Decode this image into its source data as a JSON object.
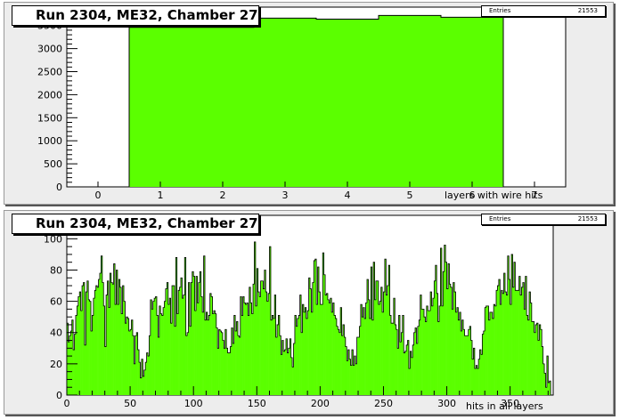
{
  "pads": [
    {
      "title": "Run 2304, ME32, Chamber 27",
      "stats": {
        "label": "Entries",
        "value": "21553"
      },
      "xlabel": "layers with wire hits"
    },
    {
      "title": "Run 2304, ME32, Chamber 27",
      "stats": {
        "label": "Entries",
        "value": "21553"
      },
      "xlabel": "hits in all layers"
    }
  ],
  "colors": {
    "fill": "#5bff00",
    "pad": "#ededed",
    "frame": "#ffffff"
  },
  "chart_data": [
    {
      "type": "bar",
      "title": "Run 2304, ME32, Chamber 27",
      "xlabel": "layers with wire hits",
      "ylabel": "",
      "xlim": [
        -0.5,
        7.5
      ],
      "ylim": [
        0,
        3900
      ],
      "x": [
        1,
        2,
        3,
        4,
        5,
        6
      ],
      "values": [
        3460,
        3460,
        3660,
        3640,
        3720,
        3680
      ],
      "xticks": [
        0,
        1,
        2,
        3,
        4,
        5,
        6,
        7
      ],
      "yticks": [
        0,
        500,
        1000,
        1500,
        2000,
        2500,
        3000,
        3500
      ],
      "entries": 21553
    },
    {
      "type": "bar",
      "title": "Run 2304, ME32, Chamber 27",
      "xlabel": "hits in all layers",
      "ylabel": "",
      "xlim": [
        0,
        384
      ],
      "ylim": [
        0,
        115
      ],
      "xticks": [
        0,
        50,
        100,
        150,
        200,
        250,
        300,
        350
      ],
      "yticks": [
        0,
        20,
        40,
        60,
        80,
        100
      ],
      "entries": 21553,
      "values": [
        46,
        34,
        38,
        41,
        48,
        29,
        39,
        51,
        57,
        63,
        66,
        54,
        70,
        72,
        32,
        66,
        73,
        61,
        60,
        41,
        51,
        62,
        67,
        70,
        69,
        74,
        78,
        89,
        72,
        57,
        31,
        64,
        73,
        56,
        78,
        72,
        71,
        84,
        58,
        80,
        58,
        74,
        69,
        52,
        70,
        60,
        46,
        50,
        49,
        41,
        42,
        48,
        38,
        20,
        38,
        40,
        29,
        21,
        11,
        23,
        12,
        16,
        21,
        27,
        25,
        38,
        61,
        55,
        60,
        62,
        63,
        51,
        37,
        57,
        52,
        51,
        56,
        60,
        68,
        72,
        58,
        62,
        46,
        70,
        70,
        44,
        88,
        52,
        67,
        69,
        75,
        62,
        64,
        88,
        38,
        40,
        72,
        44,
        72,
        79,
        76,
        54,
        76,
        59,
        72,
        79,
        63,
        53,
        89,
        48,
        53,
        48,
        51,
        65,
        63,
        52,
        54,
        52,
        43,
        30,
        42,
        41,
        40,
        35,
        30,
        42,
        30,
        27,
        27,
        31,
        43,
        33,
        51,
        41,
        47,
        38,
        37,
        63,
        51,
        63,
        59,
        58,
        59,
        51,
        69,
        59,
        52,
        71,
        98,
        57,
        81,
        66,
        63,
        73,
        73,
        68,
        80,
        66,
        60,
        65,
        95,
        48,
        51,
        49,
        64,
        37,
        45,
        51,
        38,
        26,
        35,
        28,
        29,
        36,
        27,
        30,
        36,
        24,
        18,
        33,
        51,
        44,
        49,
        51,
        64,
        40,
        58,
        53,
        56,
        49,
        54,
        75,
        68,
        53,
        72,
        86,
        87,
        58,
        82,
        66,
        58,
        58,
        91,
        77,
        64,
        65,
        61,
        59,
        62,
        53,
        59,
        51,
        49,
        44,
        42,
        40,
        56,
        38,
        45,
        37,
        31,
        22,
        29,
        23,
        19,
        29,
        19,
        25,
        20,
        37,
        37,
        44,
        58,
        50,
        56,
        49,
        59,
        74,
        61,
        49,
        82,
        48,
        85,
        61,
        73,
        73,
        58,
        60,
        69,
        53,
        66,
        87,
        64,
        70,
        83,
        51,
        46,
        46,
        62,
        45,
        42,
        30,
        51,
        34,
        40,
        51,
        27,
        28,
        32,
        35,
        17,
        28,
        24,
        32,
        40,
        43,
        33,
        44,
        48,
        64,
        55,
        55,
        50,
        47,
        57,
        54,
        54,
        66,
        57,
        62,
        73,
        83,
        65,
        47,
        57,
        94,
        57,
        79,
        96,
        85,
        68,
        84,
        71,
        69,
        55,
        72,
        66,
        53,
        56,
        48,
        53,
        41,
        48,
        42,
        38,
        38,
        38,
        42,
        44,
        35,
        23,
        30,
        17,
        19,
        17,
        23,
        29,
        26,
        39,
        41,
        56,
        57,
        57,
        48,
        53,
        53,
        49,
        58,
        57,
        67,
        70,
        74,
        58,
        67,
        65,
        78,
        66,
        64,
        89,
        74,
        58,
        90,
        69,
        85,
        67,
        67,
        67,
        76,
        64,
        69,
        72,
        55,
        76,
        51,
        48,
        66,
        59,
        47,
        47,
        40,
        45,
        46,
        35,
        45,
        42,
        31,
        20,
        14,
        5,
        25,
        8,
        9
      ]
    }
  ]
}
